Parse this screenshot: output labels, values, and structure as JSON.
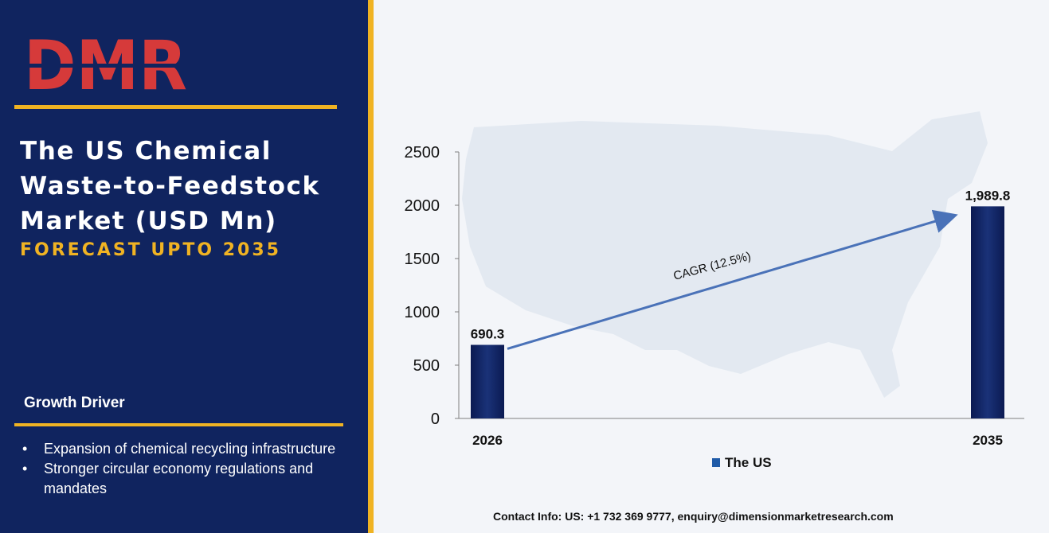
{
  "brand": {
    "logo_text": "DMR"
  },
  "title": {
    "line1": "The US Chemical",
    "line2": "Waste-to-Feedstock",
    "line3": "Market (USD Mn)",
    "subtitle": "FORECAST UPTO 2035"
  },
  "growth_driver": {
    "heading": "Growth Driver",
    "items": [
      "Expansion of chemical recycling infrastructure",
      "Stronger circular economy regulations and mandates"
    ]
  },
  "contact": {
    "text": "Contact Info: US: +1 732 369 9777, enquiry@dimensionmarketresearch.com"
  },
  "colors": {
    "navy": "#10245f",
    "gold": "#f0b323",
    "bar": "#0f2366",
    "arrow": "#4a72b8"
  },
  "chart_data": {
    "type": "bar",
    "categories": [
      "2026",
      "2035"
    ],
    "series": [
      {
        "name": "The US",
        "values": [
          690.3,
          1989.8
        ]
      }
    ],
    "data_labels": [
      "690.3",
      "1,989.8"
    ],
    "yticks": [
      "0",
      "500",
      "1000",
      "1500",
      "2000",
      "2500"
    ],
    "ylim": [
      0,
      2500
    ],
    "annotation": "CAGR (12.5%)",
    "legend_position": "bottom",
    "grid": false,
    "background_image": "us-map-silhouette"
  }
}
